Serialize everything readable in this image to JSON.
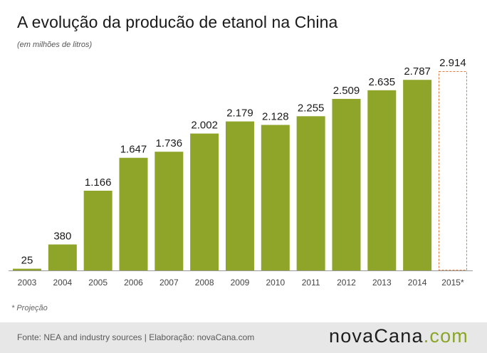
{
  "header": {
    "title": "A evolução da producão de etanol na China",
    "subtitle": "(em  milhões de litros)"
  },
  "chart_data": {
    "type": "bar",
    "categories": [
      "2003",
      "2004",
      "2005",
      "2006",
      "2007",
      "2008",
      "2009",
      "2010",
      "2011",
      "2012",
      "2013",
      "2014",
      "2015*"
    ],
    "values": [
      25,
      380,
      1166,
      1647,
      1736,
      2002,
      2179,
      2128,
      2255,
      2509,
      2635,
      2787,
      2914
    ],
    "value_labels": [
      "25",
      "380",
      "1.166",
      "1.647",
      "1.736",
      "2.002",
      "2.179",
      "2.128",
      "2.255",
      "2.509",
      "2.635",
      "2.787",
      "2.914"
    ],
    "projected": [
      false,
      false,
      false,
      false,
      false,
      false,
      false,
      false,
      false,
      false,
      false,
      false,
      true
    ],
    "ylim": [
      0,
      2914
    ],
    "grid": false,
    "colors": {
      "bar": "#8fa52a",
      "projection_outline": "#e07a3e",
      "axis": "#999999"
    }
  },
  "notes": {
    "projection": "* Projeção"
  },
  "footer": {
    "source": "Fonte: NEA and industry sources | Elaboração: novaCana.com",
    "brand_main": "novaCana",
    "brand_suffix": ".com"
  }
}
